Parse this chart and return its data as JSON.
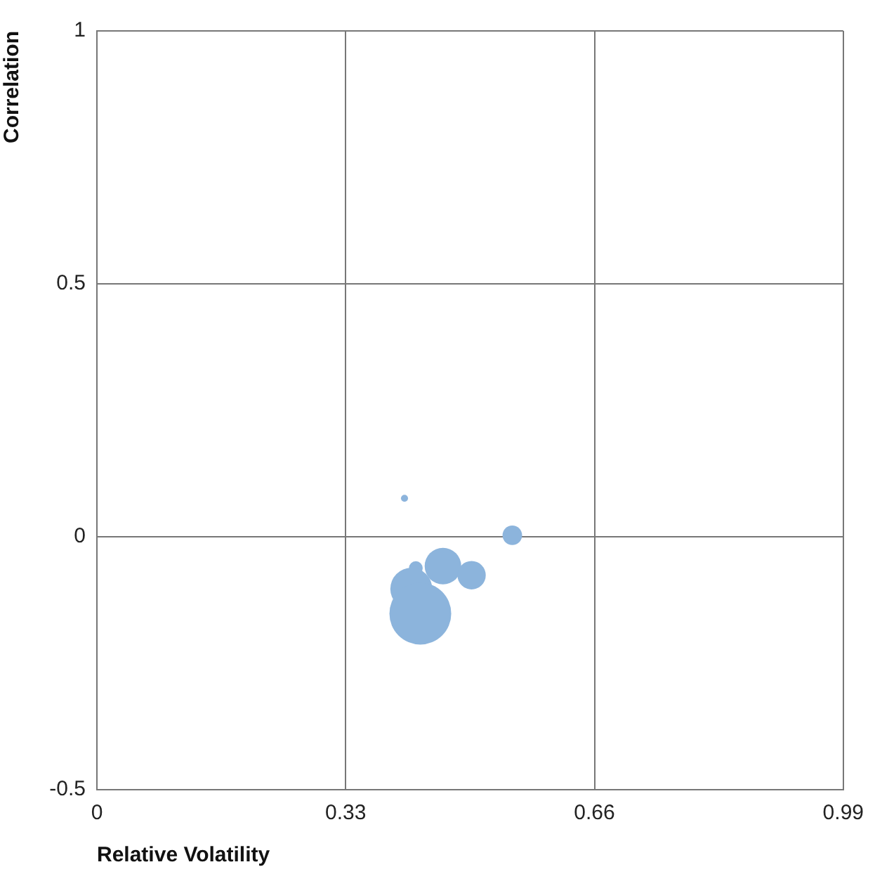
{
  "chart_data": {
    "type": "bubble",
    "xlabel": "Relative Volatility",
    "ylabel": "Correlation",
    "x": [
      0.408,
      0.551,
      0.459,
      0.497,
      0.423,
      0.417,
      0.429
    ],
    "values": [
      0.076,
      0.003,
      -0.058,
      -0.076,
      -0.062,
      -0.103,
      -0.152
    ],
    "sizes": [
      0.013,
      0.1,
      0.35,
      0.21,
      0.05,
      0.46,
      1
    ],
    "color": "#8cb4dc",
    "xlim": [
      0,
      0.99
    ],
    "xticks": [
      0,
      0.33,
      0.66,
      0.99
    ],
    "ylim": [
      -0.5,
      1
    ],
    "yticks": [
      -0.5,
      0,
      0.5,
      1
    ],
    "grid": true,
    "legend": false
  }
}
